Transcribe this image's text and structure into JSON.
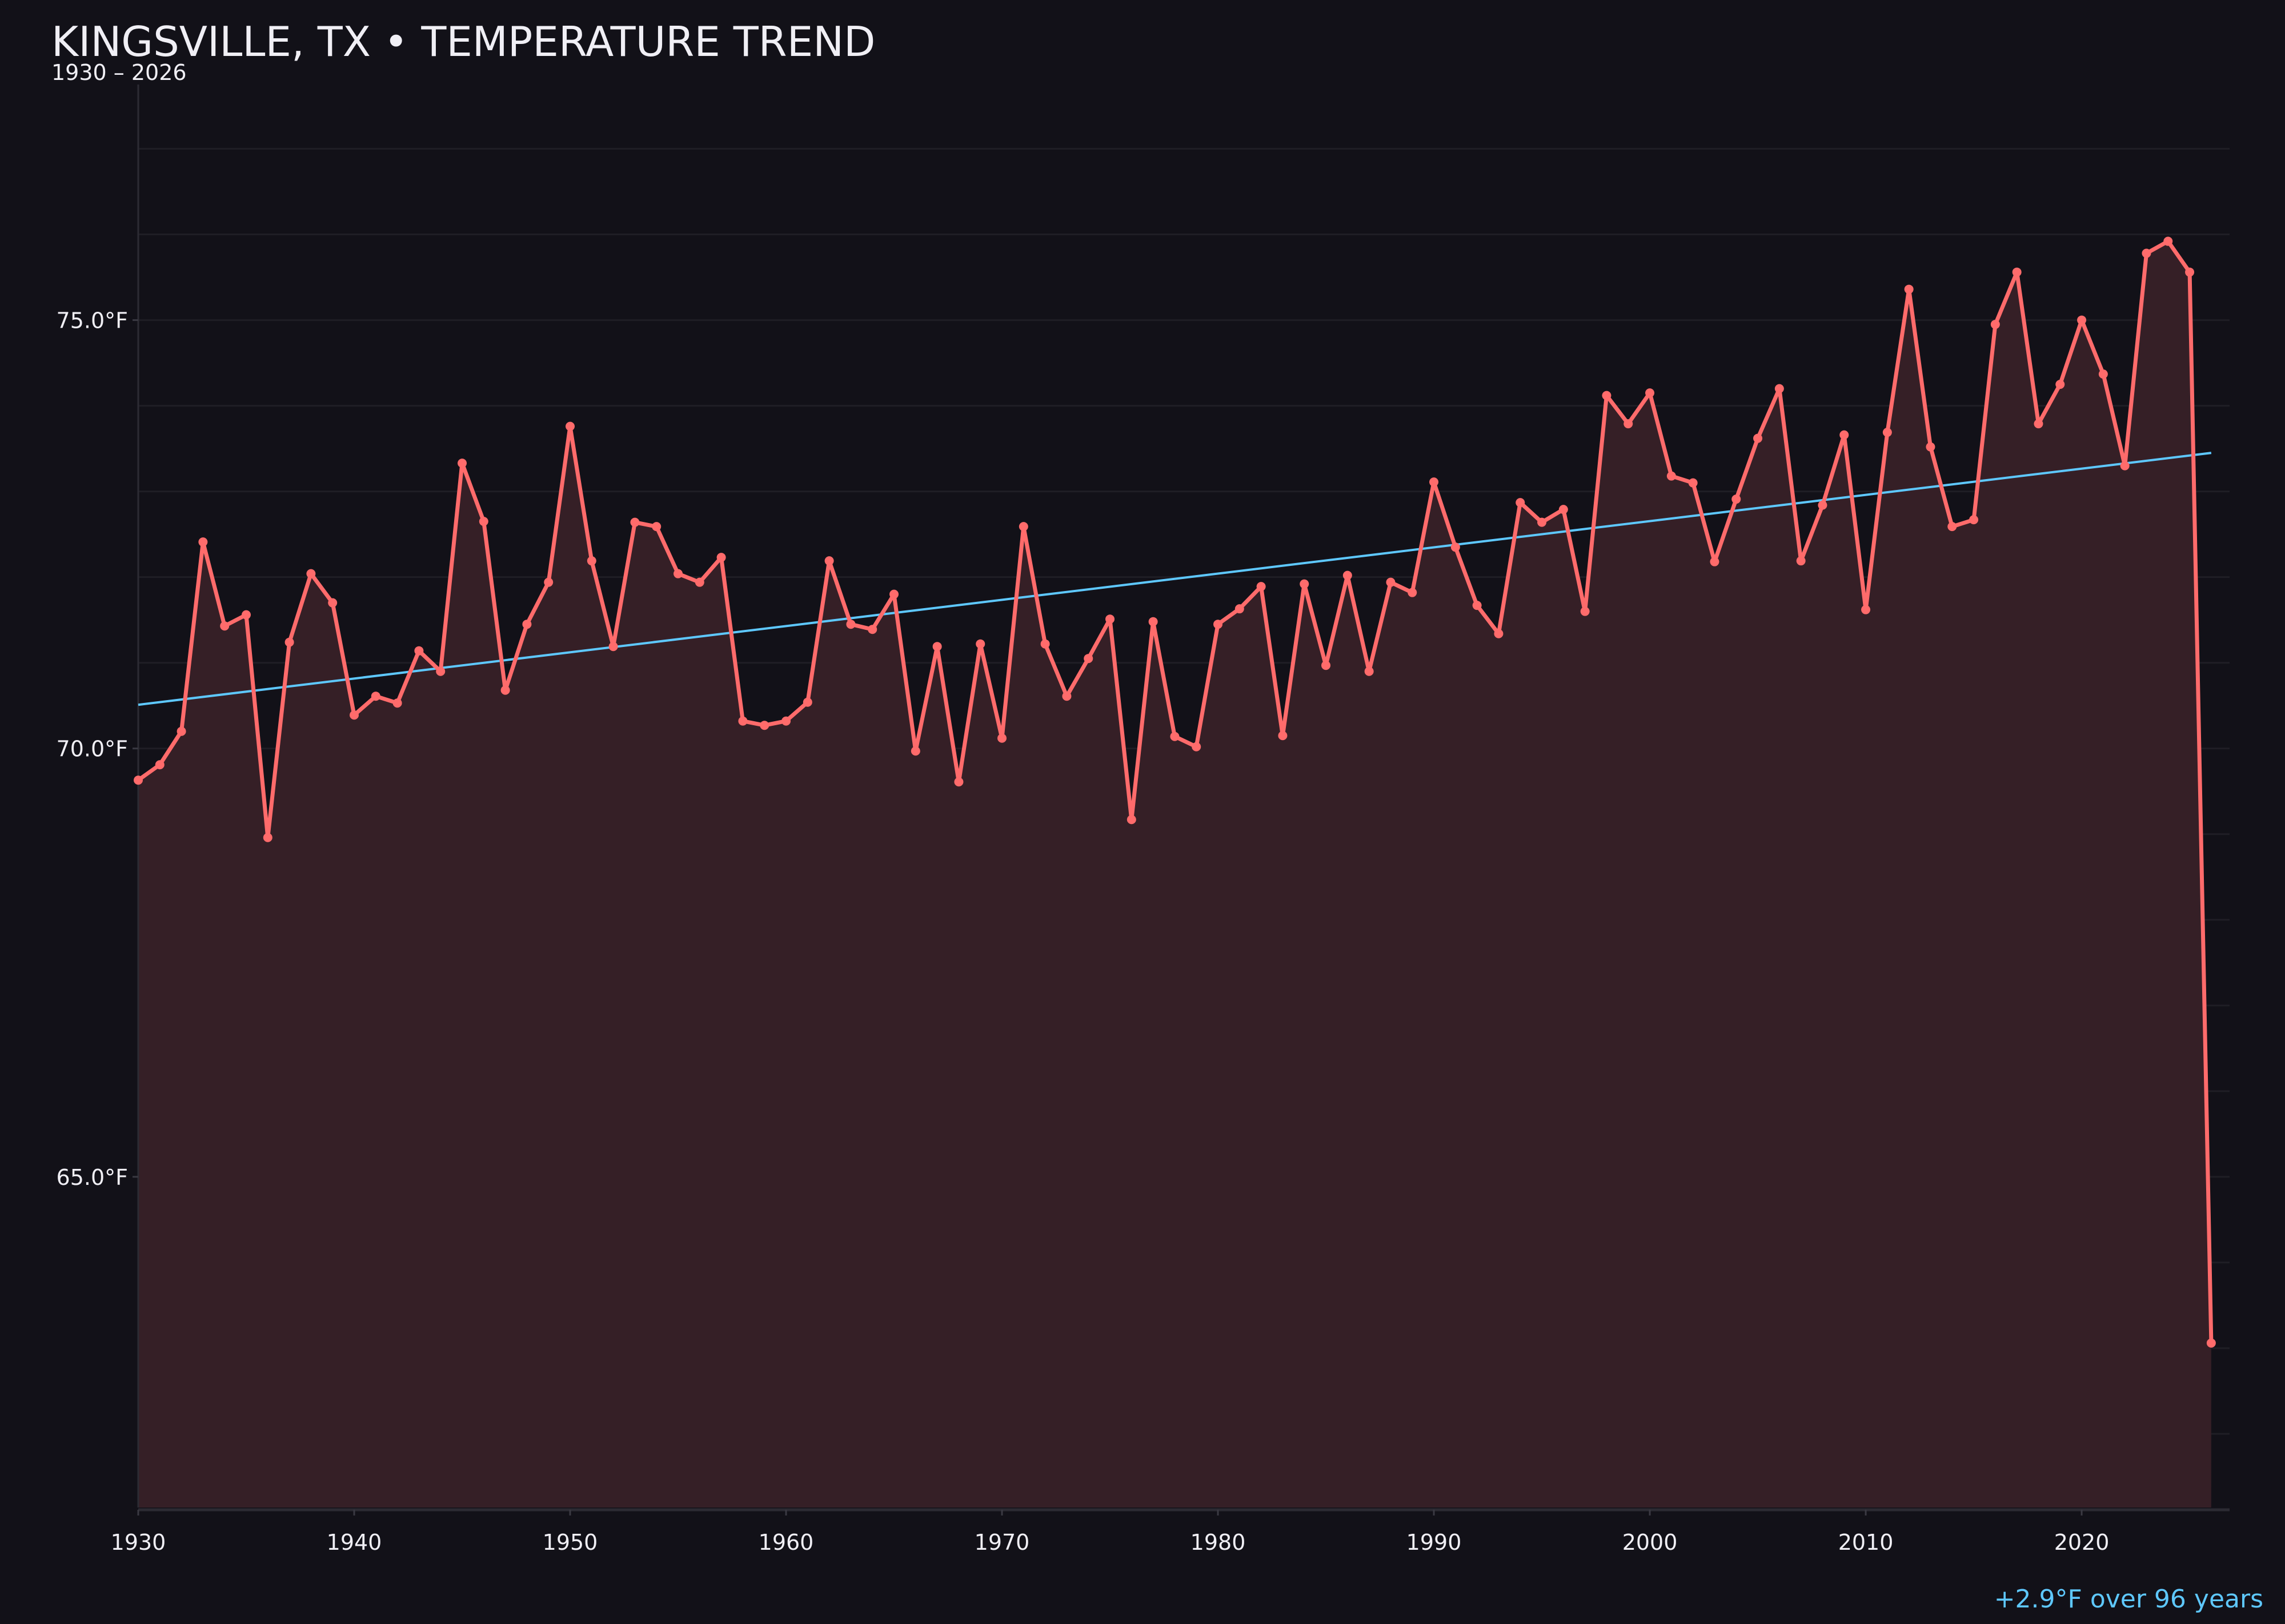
{
  "chart_data": {
    "type": "line",
    "title": "KINGSVILLE, TX • TEMPERATURE TREND",
    "subtitle": "1930 – 2026",
    "xlabel": "",
    "ylabel": "",
    "xlim": [
      1930,
      2026.85
    ],
    "ylim": [
      61.14,
      77.75
    ],
    "grid": true,
    "x_ticks": [
      1930,
      1940,
      1950,
      1960,
      1970,
      1980,
      1990,
      2000,
      2010,
      2020
    ],
    "y_ticks": [
      65,
      70,
      75
    ],
    "y_tick_labels": [
      "65.0°F",
      "70.0°F",
      "75.0°F"
    ],
    "x": [
      1930,
      1931,
      1932,
      1933,
      1934,
      1935,
      1936,
      1937,
      1938,
      1939,
      1940,
      1941,
      1942,
      1943,
      1944,
      1945,
      1946,
      1947,
      1948,
      1949,
      1950,
      1951,
      1952,
      1953,
      1954,
      1955,
      1956,
      1957,
      1958,
      1959,
      1960,
      1961,
      1962,
      1963,
      1964,
      1965,
      1966,
      1967,
      1968,
      1969,
      1970,
      1971,
      1972,
      1973,
      1974,
      1975,
      1976,
      1977,
      1978,
      1979,
      1980,
      1981,
      1982,
      1983,
      1984,
      1985,
      1986,
      1987,
      1988,
      1989,
      1990,
      1991,
      1992,
      1993,
      1994,
      1995,
      1996,
      1997,
      1998,
      1999,
      2000,
      2001,
      2002,
      2003,
      2004,
      2005,
      2006,
      2007,
      2008,
      2009,
      2010,
      2011,
      2012,
      2013,
      2014,
      2015,
      2016,
      2017,
      2018,
      2019,
      2020,
      2021,
      2022,
      2023,
      2024,
      2025,
      2026
    ],
    "series": [
      {
        "values": [
          69.63,
          69.81,
          70.2,
          72.41,
          71.43,
          71.56,
          68.96,
          71.24,
          72.04,
          71.7,
          70.39,
          70.61,
          70.53,
          71.14,
          70.9,
          73.33,
          72.65,
          70.68,
          71.45,
          71.94,
          73.76,
          72.19,
          71.19,
          72.64,
          72.59,
          72.04,
          71.94,
          72.23,
          70.32,
          70.27,
          70.32,
          70.54,
          72.19,
          71.45,
          71.39,
          71.8,
          69.97,
          71.19,
          69.61,
          71.22,
          70.12,
          72.59,
          71.22,
          70.61,
          71.05,
          71.51,
          69.17,
          71.48,
          70.14,
          70.02,
          71.45,
          71.63,
          71.89,
          70.15,
          71.92,
          70.97,
          72.02,
          70.9,
          71.94,
          71.82,
          73.11,
          72.35,
          71.67,
          71.34,
          72.87,
          72.64,
          72.79,
          71.6,
          74.12,
          73.79,
          74.15,
          73.18,
          73.1,
          72.18,
          72.91,
          73.62,
          74.2,
          72.19,
          72.84,
          73.66,
          71.62,
          73.69,
          75.36,
          73.52,
          72.59,
          72.67,
          74.95,
          75.56,
          73.79,
          74.25,
          75.0,
          74.37,
          73.3,
          75.78,
          75.92,
          75.56,
          63.06
        ],
        "color": "#ff6b6b",
        "fill": "#351f26"
      }
    ],
    "trend": {
      "x": [
        1930,
        2026
      ],
      "y": [
        70.51,
        73.45
      ],
      "color": "#5ec8ff"
    },
    "annotation": "+2.9°F over 96 years",
    "colors": {
      "background": "#121118",
      "text": "#f0eff5",
      "annotation": "#5ec8ff",
      "grid": "#1f1e25",
      "axis": "#2c2b33"
    }
  }
}
